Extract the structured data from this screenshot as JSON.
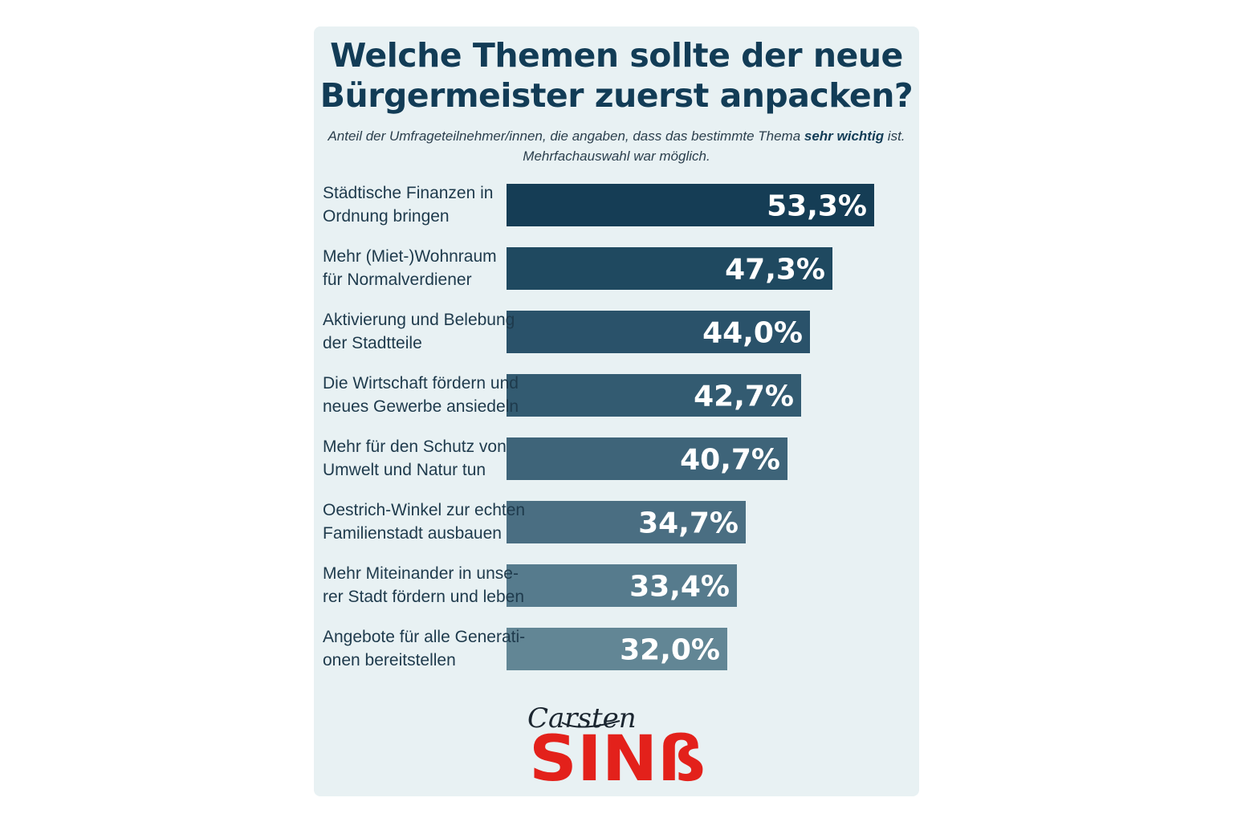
{
  "chart_data": {
    "type": "bar",
    "orientation": "horizontal",
    "title_lines": [
      "Welche Themen sollte der neue",
      "Bürgermeister zuerst anpacken?"
    ],
    "subtitle": {
      "line1_prefix": "Anteil der Umfrageteilnehmer/innen, die angaben, dass das bestimmte Thema ",
      "line1_bold": "sehr wichtig",
      "line1_suffix": " ist.",
      "line2": "Mehrfachauswahl war möglich."
    },
    "categories": [
      [
        "Städtische Finanzen in",
        "Ordnung bringen"
      ],
      [
        "Mehr (Miet-)Wohnraum",
        "für Normalverdiener"
      ],
      [
        "Aktivierung und Belebung",
        "der Stadtteile"
      ],
      [
        "Die Wirtschaft fördern und",
        "neues Gewerbe ansiedeln"
      ],
      [
        "Mehr für den Schutz von",
        "Umwelt und Natur tun"
      ],
      [
        "Oestrich-Winkel zur echten",
        "Familienstadt ausbauen"
      ],
      [
        "Mehr Miteinander in unse-",
        "rer Stadt fördern und leben"
      ],
      [
        "Angebote für alle Generati-",
        "onen bereitstellen"
      ]
    ],
    "values": [
      53.3,
      47.3,
      44.0,
      42.7,
      40.7,
      34.7,
      33.4,
      32.0
    ],
    "value_labels": [
      "53,3%",
      "47,3%",
      "44,0%",
      "42,7%",
      "40,7%",
      "34,7%",
      "33,4%",
      "32,0%"
    ],
    "bar_colors": [
      "#153d55",
      "#1f4960",
      "#2a526a",
      "#335b71",
      "#3e6479",
      "#4a6e82",
      "#567b8d",
      "#628695"
    ],
    "xlim": [
      0,
      53.3
    ],
    "grid": false,
    "legend": "none"
  },
  "logo": {
    "script_text": "Carsten",
    "main_text": "SINß"
  },
  "colors": {
    "card_background": "#e8f1f3",
    "title": "#123c56",
    "logo_red": "#e3211b"
  }
}
